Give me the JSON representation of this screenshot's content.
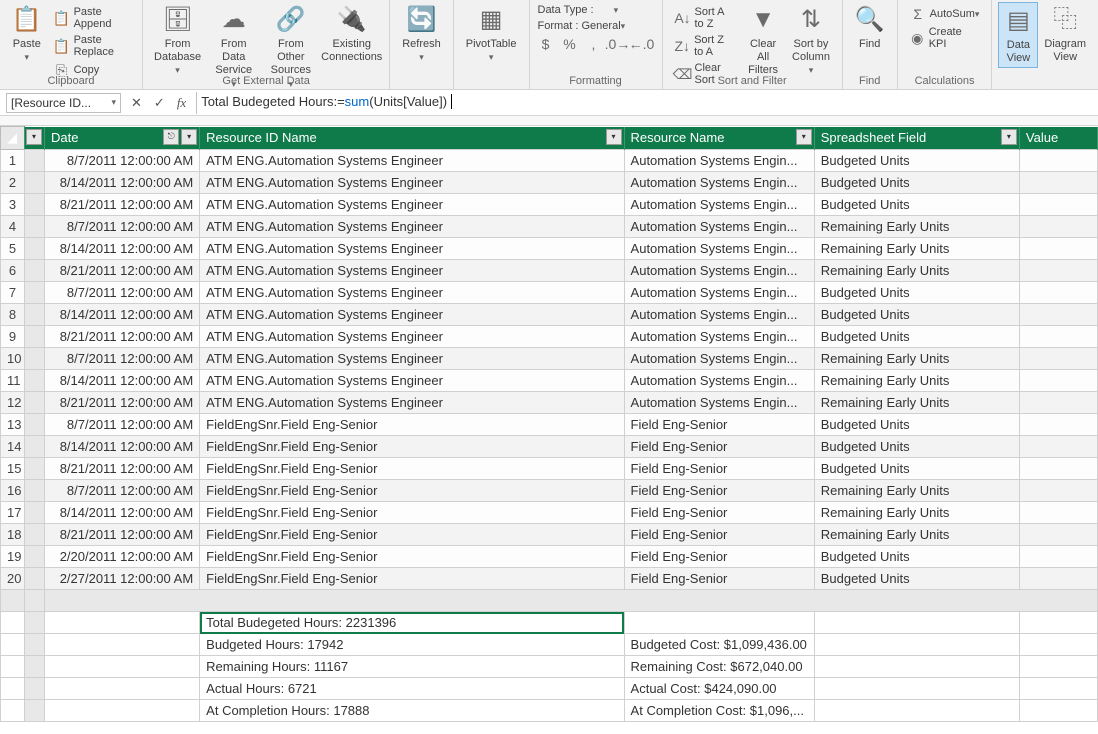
{
  "ribbon": {
    "paste": "Paste",
    "paste_append": "Paste Append",
    "paste_replace": "Paste Replace",
    "copy": "Copy",
    "clipboard_group": "Clipboard",
    "from_database": "From\nDatabase",
    "from_data_service": "From Data\nService",
    "from_other_sources": "From Other\nSources",
    "existing_connections": "Existing\nConnections",
    "get_external_group": "Get External Data",
    "refresh": "Refresh",
    "pivottable": "PivotTable",
    "data_type": "Data Type :",
    "format": "Format : General",
    "formatting_group": "Formatting",
    "sort_az": "Sort A to Z",
    "sort_za": "Sort Z to A",
    "clear_sort": "Clear Sort",
    "clear_all_filters": "Clear All\nFilters",
    "sort_by_column": "Sort by\nColumn",
    "sort_filter_group": "Sort and Filter",
    "find": "Find",
    "find_group": "Find",
    "autosum": "AutoSum",
    "create_kpi": "Create KPI",
    "calc_group": "Calculations",
    "data_view": "Data\nView",
    "diagram_view": "Diagram\nView"
  },
  "formula": {
    "namebox": "[Resource ID...",
    "pre": "Total Budegeted Hours:=",
    "fn": "sum",
    "post": "(Units[Value])"
  },
  "headers": {
    "date": "Date",
    "resource_id": "Resource ID Name",
    "resource_name": "Resource Name",
    "field": "Spreadsheet Field",
    "value": "Value"
  },
  "rows": [
    {
      "n": "1",
      "date": "8/7/2011 12:00:00 AM",
      "rid": "ATM ENG.Automation Systems Engineer",
      "rn": "Automation Systems Engin...",
      "f": "Budgeted Units"
    },
    {
      "n": "2",
      "date": "8/14/2011 12:00:00 AM",
      "rid": "ATM ENG.Automation Systems Engineer",
      "rn": "Automation Systems Engin...",
      "f": "Budgeted Units"
    },
    {
      "n": "3",
      "date": "8/21/2011 12:00:00 AM",
      "rid": "ATM ENG.Automation Systems Engineer",
      "rn": "Automation Systems Engin...",
      "f": "Budgeted Units"
    },
    {
      "n": "4",
      "date": "8/7/2011 12:00:00 AM",
      "rid": "ATM ENG.Automation Systems Engineer",
      "rn": "Automation Systems Engin...",
      "f": "Remaining Early Units"
    },
    {
      "n": "5",
      "date": "8/14/2011 12:00:00 AM",
      "rid": "ATM ENG.Automation Systems Engineer",
      "rn": "Automation Systems Engin...",
      "f": "Remaining Early Units"
    },
    {
      "n": "6",
      "date": "8/21/2011 12:00:00 AM",
      "rid": "ATM ENG.Automation Systems Engineer",
      "rn": "Automation Systems Engin...",
      "f": "Remaining Early Units"
    },
    {
      "n": "7",
      "date": "8/7/2011 12:00:00 AM",
      "rid": "ATM ENG.Automation Systems Engineer",
      "rn": "Automation Systems Engin...",
      "f": "Budgeted Units"
    },
    {
      "n": "8",
      "date": "8/14/2011 12:00:00 AM",
      "rid": "ATM ENG.Automation Systems Engineer",
      "rn": "Automation Systems Engin...",
      "f": "Budgeted Units"
    },
    {
      "n": "9",
      "date": "8/21/2011 12:00:00 AM",
      "rid": "ATM ENG.Automation Systems Engineer",
      "rn": "Automation Systems Engin...",
      "f": "Budgeted Units"
    },
    {
      "n": "10",
      "date": "8/7/2011 12:00:00 AM",
      "rid": "ATM ENG.Automation Systems Engineer",
      "rn": "Automation Systems Engin...",
      "f": "Remaining Early Units"
    },
    {
      "n": "11",
      "date": "8/14/2011 12:00:00 AM",
      "rid": "ATM ENG.Automation Systems Engineer",
      "rn": "Automation Systems Engin...",
      "f": "Remaining Early Units"
    },
    {
      "n": "12",
      "date": "8/21/2011 12:00:00 AM",
      "rid": "ATM ENG.Automation Systems Engineer",
      "rn": "Automation Systems Engin...",
      "f": "Remaining Early Units"
    },
    {
      "n": "13",
      "date": "8/7/2011 12:00:00 AM",
      "rid": "FieldEngSnr.Field Eng-Senior",
      "rn": "Field Eng-Senior",
      "f": "Budgeted Units"
    },
    {
      "n": "14",
      "date": "8/14/2011 12:00:00 AM",
      "rid": "FieldEngSnr.Field Eng-Senior",
      "rn": "Field Eng-Senior",
      "f": "Budgeted Units"
    },
    {
      "n": "15",
      "date": "8/21/2011 12:00:00 AM",
      "rid": "FieldEngSnr.Field Eng-Senior",
      "rn": "Field Eng-Senior",
      "f": "Budgeted Units"
    },
    {
      "n": "16",
      "date": "8/7/2011 12:00:00 AM",
      "rid": "FieldEngSnr.Field Eng-Senior",
      "rn": "Field Eng-Senior",
      "f": "Remaining Early Units"
    },
    {
      "n": "17",
      "date": "8/14/2011 12:00:00 AM",
      "rid": "FieldEngSnr.Field Eng-Senior",
      "rn": "Field Eng-Senior",
      "f": "Remaining Early Units"
    },
    {
      "n": "18",
      "date": "8/21/2011 12:00:00 AM",
      "rid": "FieldEngSnr.Field Eng-Senior",
      "rn": "Field Eng-Senior",
      "f": "Remaining Early Units"
    },
    {
      "n": "19",
      "date": "2/20/2011 12:00:00 AM",
      "rid": "FieldEngSnr.Field Eng-Senior",
      "rn": "Field Eng-Senior",
      "f": "Budgeted Units"
    },
    {
      "n": "20",
      "date": "2/27/2011 12:00:00 AM",
      "rid": "FieldEngSnr.Field Eng-Senior",
      "rn": "Field Eng-Senior",
      "f": "Budgeted Units"
    }
  ],
  "summary": {
    "total_budgeted": "Total Budegeted Hours: 2231396",
    "budgeted_hours": "Budgeted Hours: 17942",
    "remaining_hours": "Remaining Hours: 11167",
    "actual_hours": "Actual Hours: 6721",
    "at_completion_hours": "At Completion Hours: 17888",
    "budgeted_cost": "Budgeted Cost: $1,099,436.00",
    "remaining_cost": "Remaining Cost: $672,040.00",
    "actual_cost": "Actual Cost: $424,090.00",
    "at_completion_cost": "At Completion Cost: $1,096,..."
  }
}
